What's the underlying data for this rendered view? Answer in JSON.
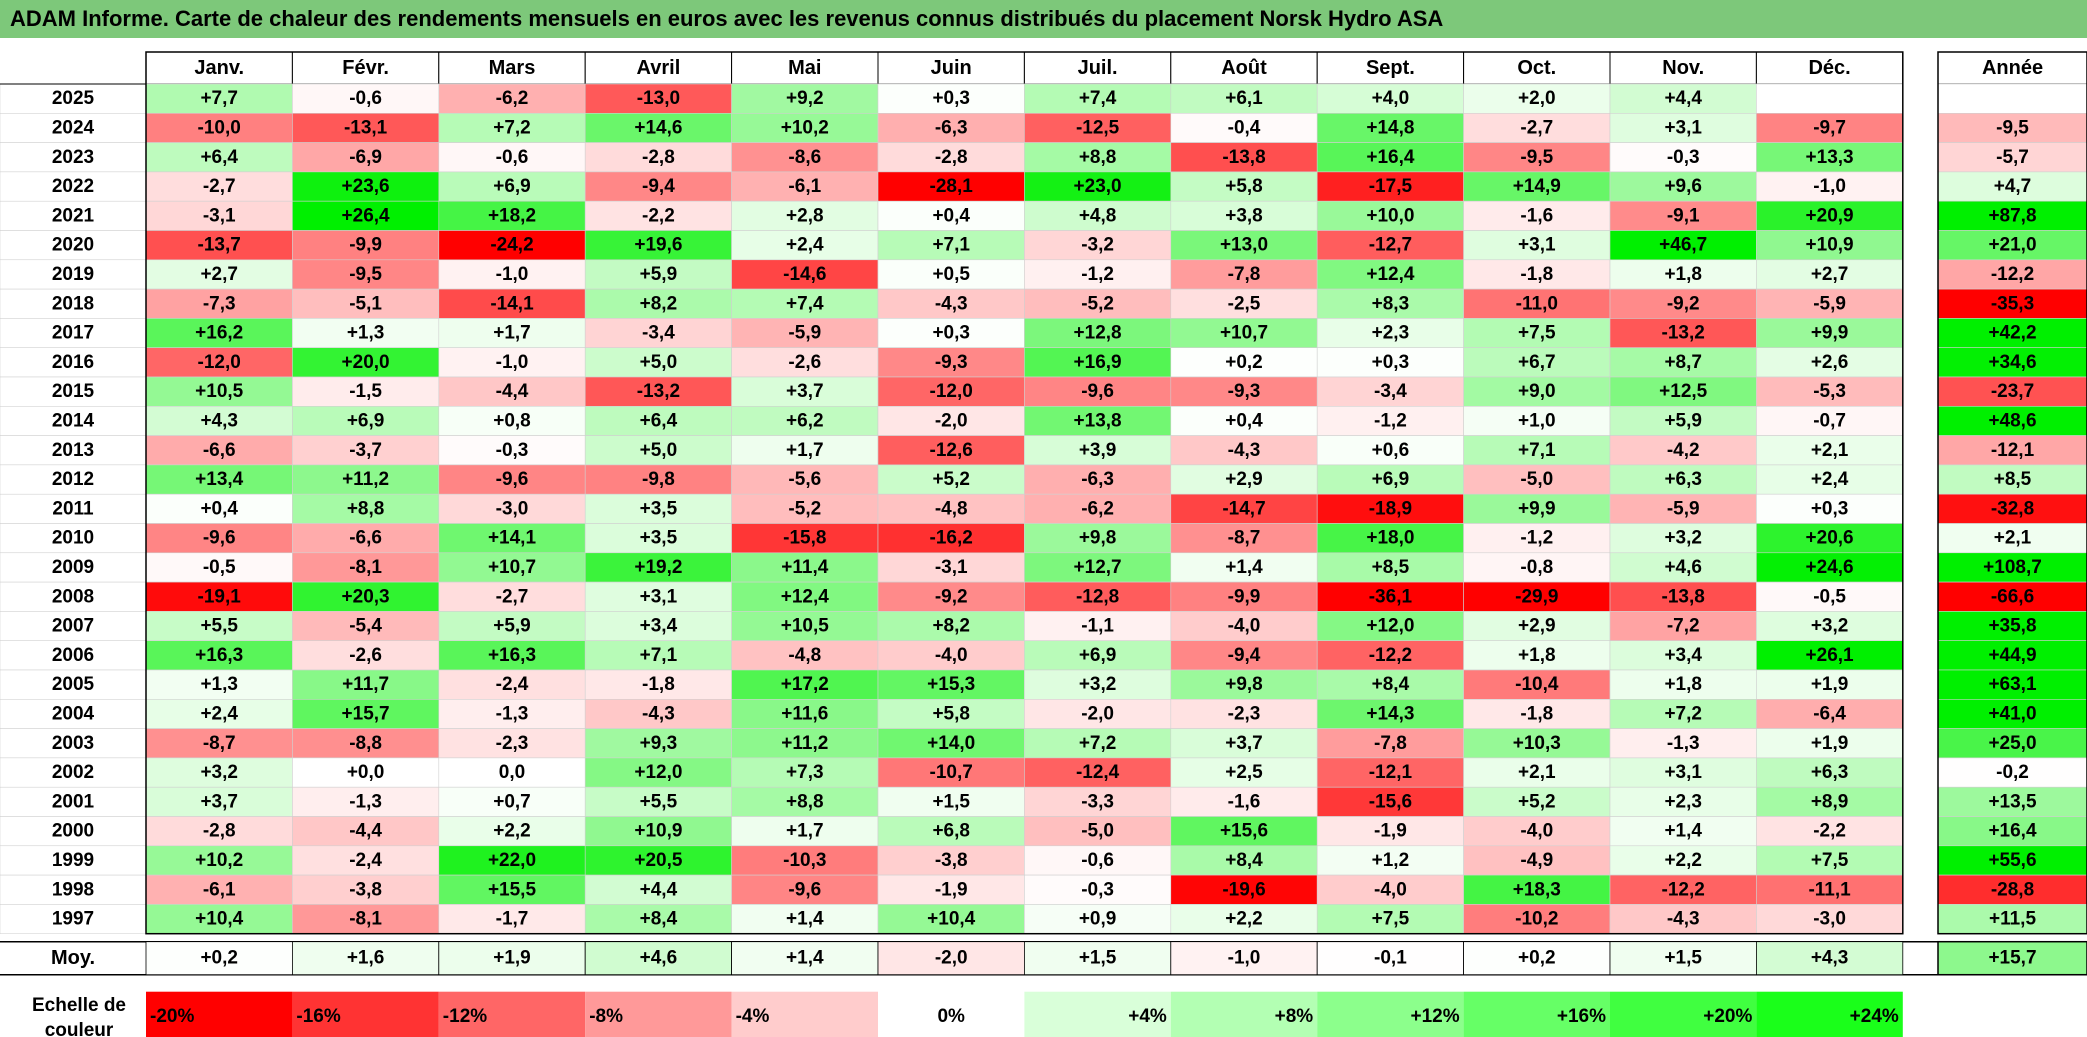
{
  "title": "ADAM Informe. Carte de chaleur des rendements mensuels en euros avec les revenus connus distribués du placement Norsk Hydro ASA",
  "chart_data": {
    "type": "heatmap",
    "title": "ADAM Informe. Carte de chaleur des rendements mensuels en euros avec les revenus connus distribués du placement Norsk Hydro ASA",
    "columns": [
      "Janv.",
      "Févr.",
      "Mars",
      "Avril",
      "Mai",
      "Juin",
      "Juil.",
      "Août",
      "Sept.",
      "Oct.",
      "Nov.",
      "Déc."
    ],
    "year_column_label": "Année",
    "rows": [
      {
        "year": "2025",
        "values": [
          "+7,7",
          "-0,6",
          "-6,2",
          "-13,0",
          "+9,2",
          "+0,3",
          "+7,4",
          "+6,1",
          "+4,0",
          "+2,0",
          "+4,4",
          ""
        ],
        "annual": ""
      },
      {
        "year": "2024",
        "values": [
          "-10,0",
          "-13,1",
          "+7,2",
          "+14,6",
          "+10,2",
          "-6,3",
          "-12,5",
          "-0,4",
          "+14,8",
          "-2,7",
          "+3,1",
          "-9,7"
        ],
        "annual": "-9,5"
      },
      {
        "year": "2023",
        "values": [
          "+6,4",
          "-6,9",
          "-0,6",
          "-2,8",
          "-8,6",
          "-2,8",
          "+8,8",
          "-13,8",
          "+16,4",
          "-9,5",
          "-0,3",
          "+13,3"
        ],
        "annual": "-5,7"
      },
      {
        "year": "2022",
        "values": [
          "-2,7",
          "+23,6",
          "+6,9",
          "-9,4",
          "-6,1",
          "-28,1",
          "+23,0",
          "+5,8",
          "-17,5",
          "+14,9",
          "+9,6",
          "-1,0"
        ],
        "annual": "+4,7"
      },
      {
        "year": "2021",
        "values": [
          "-3,1",
          "+26,4",
          "+18,2",
          "-2,2",
          "+2,8",
          "+0,4",
          "+4,8",
          "+3,8",
          "+10,0",
          "-1,6",
          "-9,1",
          "+20,9"
        ],
        "annual": "+87,8"
      },
      {
        "year": "2020",
        "values": [
          "-13,7",
          "-9,9",
          "-24,2",
          "+19,6",
          "+2,4",
          "+7,1",
          "-3,2",
          "+13,0",
          "-12,7",
          "+3,1",
          "+46,7",
          "+10,9"
        ],
        "annual": "+21,0"
      },
      {
        "year": "2019",
        "values": [
          "+2,7",
          "-9,5",
          "-1,0",
          "+5,9",
          "-14,6",
          "+0,5",
          "-1,2",
          "-7,8",
          "+12,4",
          "-1,8",
          "+1,8",
          "+2,7"
        ],
        "annual": "-12,2"
      },
      {
        "year": "2018",
        "values": [
          "-7,3",
          "-5,1",
          "-14,1",
          "+8,2",
          "+7,4",
          "-4,3",
          "-5,2",
          "-2,5",
          "+8,3",
          "-11,0",
          "-9,2",
          "-5,9"
        ],
        "annual": "-35,3"
      },
      {
        "year": "2017",
        "values": [
          "+16,2",
          "+1,3",
          "+1,7",
          "-3,4",
          "-5,9",
          "+0,3",
          "+12,8",
          "+10,7",
          "+2,3",
          "+7,5",
          "-13,2",
          "+9,9"
        ],
        "annual": "+42,2"
      },
      {
        "year": "2016",
        "values": [
          "-12,0",
          "+20,0",
          "-1,0",
          "+5,0",
          "-2,6",
          "-9,3",
          "+16,9",
          "+0,2",
          "+0,3",
          "+6,7",
          "+8,7",
          "+2,6"
        ],
        "annual": "+34,6"
      },
      {
        "year": "2015",
        "values": [
          "+10,5",
          "-1,5",
          "-4,4",
          "-13,2",
          "+3,7",
          "-12,0",
          "-9,6",
          "-9,3",
          "-3,4",
          "+9,0",
          "+12,5",
          "-5,3"
        ],
        "annual": "-23,7"
      },
      {
        "year": "2014",
        "values": [
          "+4,3",
          "+6,9",
          "+0,8",
          "+6,4",
          "+6,2",
          "-2,0",
          "+13,8",
          "+0,4",
          "-1,2",
          "+1,0",
          "+5,9",
          "-0,7"
        ],
        "annual": "+48,6"
      },
      {
        "year": "2013",
        "values": [
          "-6,6",
          "-3,7",
          "-0,3",
          "+5,0",
          "+1,7",
          "-12,6",
          "+3,9",
          "-4,3",
          "+0,6",
          "+7,1",
          "-4,2",
          "+2,1"
        ],
        "annual": "-12,1"
      },
      {
        "year": "2012",
        "values": [
          "+13,4",
          "+11,2",
          "-9,6",
          "-9,8",
          "-5,6",
          "+5,2",
          "-6,3",
          "+2,9",
          "+6,9",
          "-5,0",
          "+6,3",
          "+2,4"
        ],
        "annual": "+8,5"
      },
      {
        "year": "2011",
        "values": [
          "+0,4",
          "+8,8",
          "-3,0",
          "+3,5",
          "-5,2",
          "-4,8",
          "-6,2",
          "-14,7",
          "-18,9",
          "+9,9",
          "-5,9",
          "+0,3"
        ],
        "annual": "-32,8"
      },
      {
        "year": "2010",
        "values": [
          "-9,6",
          "-6,6",
          "+14,1",
          "+3,5",
          "-15,8",
          "-16,2",
          "+9,8",
          "-8,7",
          "+18,0",
          "-1,2",
          "+3,2",
          "+20,6"
        ],
        "annual": "+2,1"
      },
      {
        "year": "2009",
        "values": [
          "-0,5",
          "-8,1",
          "+10,7",
          "+19,2",
          "+11,4",
          "-3,1",
          "+12,7",
          "+1,4",
          "+8,5",
          "-0,8",
          "+4,6",
          "+24,6"
        ],
        "annual": "+108,7"
      },
      {
        "year": "2008",
        "values": [
          "-19,1",
          "+20,3",
          "-2,7",
          "+3,1",
          "+12,4",
          "-9,2",
          "-12,8",
          "-9,9",
          "-36,1",
          "-29,9",
          "-13,8",
          "-0,5"
        ],
        "annual": "-66,6"
      },
      {
        "year": "2007",
        "values": [
          "+5,5",
          "-5,4",
          "+5,9",
          "+3,4",
          "+10,5",
          "+8,2",
          "-1,1",
          "-4,0",
          "+12,0",
          "+2,9",
          "-7,2",
          "+3,2"
        ],
        "annual": "+35,8"
      },
      {
        "year": "2006",
        "values": [
          "+16,3",
          "-2,6",
          "+16,3",
          "+7,1",
          "-4,8",
          "-4,0",
          "+6,9",
          "-9,4",
          "-12,2",
          "+1,8",
          "+3,4",
          "+26,1"
        ],
        "annual": "+44,9"
      },
      {
        "year": "2005",
        "values": [
          "+1,3",
          "+11,7",
          "-2,4",
          "-1,8",
          "+17,2",
          "+15,3",
          "+3,2",
          "+9,8",
          "+8,4",
          "-10,4",
          "+1,8",
          "+1,9"
        ],
        "annual": "+63,1"
      },
      {
        "year": "2004",
        "values": [
          "+2,4",
          "+15,7",
          "-1,3",
          "-4,3",
          "+11,6",
          "+5,8",
          "-2,0",
          "-2,3",
          "+14,3",
          "-1,8",
          "+7,2",
          "-6,4"
        ],
        "annual": "+41,0"
      },
      {
        "year": "2003",
        "values": [
          "-8,7",
          "-8,8",
          "-2,3",
          "+9,3",
          "+11,2",
          "+14,0",
          "+7,2",
          "+3,7",
          "-7,8",
          "+10,3",
          "-1,3",
          "+1,9"
        ],
        "annual": "+25,0"
      },
      {
        "year": "2002",
        "values": [
          "+3,2",
          "+0,0",
          "0,0",
          "+12,0",
          "+7,3",
          "-10,7",
          "-12,4",
          "+2,5",
          "-12,1",
          "+2,1",
          "+3,1",
          "+6,3"
        ],
        "annual": "-0,2"
      },
      {
        "year": "2001",
        "values": [
          "+3,7",
          "-1,3",
          "+0,7",
          "+5,5",
          "+8,8",
          "+1,5",
          "-3,3",
          "-1,6",
          "-15,6",
          "+5,2",
          "+2,3",
          "+8,9"
        ],
        "annual": "+13,5"
      },
      {
        "year": "2000",
        "values": [
          "-2,8",
          "-4,4",
          "+2,2",
          "+10,9",
          "+1,7",
          "+6,8",
          "-5,0",
          "+15,6",
          "-1,9",
          "-4,0",
          "+1,4",
          "-2,2"
        ],
        "annual": "+16,4"
      },
      {
        "year": "1999",
        "values": [
          "+10,2",
          "-2,4",
          "+22,0",
          "+20,5",
          "-10,3",
          "-3,8",
          "-0,6",
          "+8,4",
          "+1,2",
          "-4,9",
          "+2,2",
          "+7,5"
        ],
        "annual": "+55,6"
      },
      {
        "year": "1998",
        "values": [
          "-6,1",
          "-3,8",
          "+15,5",
          "+4,4",
          "-9,6",
          "-1,9",
          "-0,3",
          "-19,6",
          "-4,0",
          "+18,3",
          "-12,2",
          "-11,1"
        ],
        "annual": "-28,8"
      },
      {
        "year": "1997",
        "values": [
          "+10,4",
          "-8,1",
          "-1,7",
          "+8,4",
          "+1,4",
          "+10,4",
          "+0,9",
          "+2,2",
          "+7,5",
          "-10,2",
          "-4,3",
          "-3,0"
        ],
        "annual": "+11,5"
      }
    ],
    "average": {
      "label": "Moy.",
      "values": [
        "+0,2",
        "+1,6",
        "+1,9",
        "+4,6",
        "+1,4",
        "-2,0",
        "+1,5",
        "-1,0",
        "-0,1",
        "+0,2",
        "+1,5",
        "+4,3"
      ],
      "annual": "+15,7"
    },
    "scale": {
      "label_line1": "Echelle de",
      "label_line2": "couleur",
      "items": [
        {
          "label": "-20%",
          "color": "#ff0000"
        },
        {
          "label": "-16%",
          "color": "#ff3333"
        },
        {
          "label": "-12%",
          "color": "#ff6666"
        },
        {
          "label": "-8%",
          "color": "#ff9999"
        },
        {
          "label": "-4%",
          "color": "#ffcccc"
        },
        {
          "label": "0%",
          "color": "#ffffff"
        },
        {
          "label": "+4%",
          "color": "#d9ffd9"
        },
        {
          "label": "+8%",
          "color": "#b3ffb3"
        },
        {
          "label": "+12%",
          "color": "#8cff8c"
        },
        {
          "label": "+16%",
          "color": "#66ff66"
        },
        {
          "label": "+20%",
          "color": "#40ff40"
        },
        {
          "label": "+24%",
          "color": "#1aff1a"
        }
      ]
    },
    "colors": {
      "title_bar": "#7dc87a",
      "negative_max": "#ff0000",
      "neutral": "#ffffff",
      "positive_max": "#00f000"
    }
  }
}
